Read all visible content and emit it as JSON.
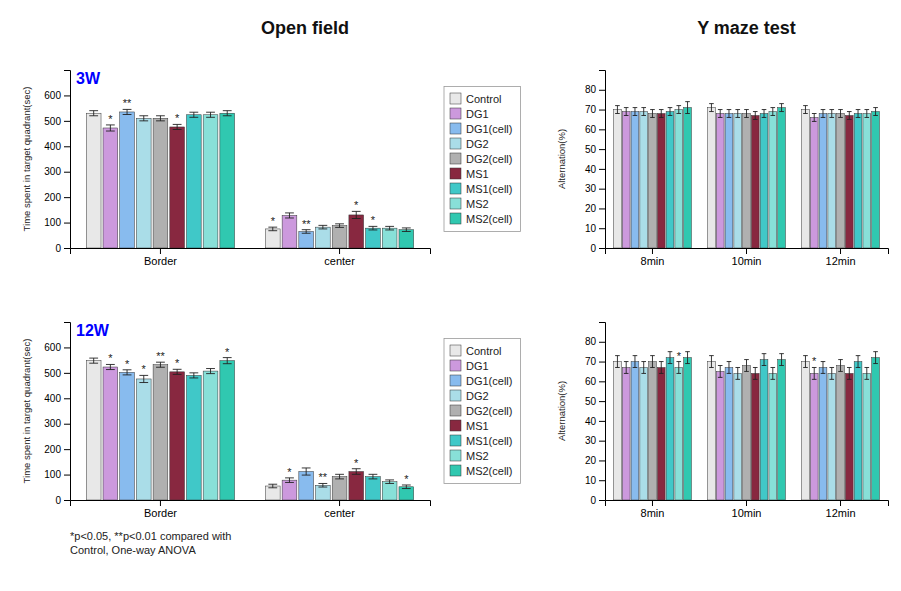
{
  "chart_data": [
    {
      "type": "bar",
      "title": "Open field",
      "subtitle": "3W",
      "categories": [
        "Border",
        "center"
      ],
      "ylabel": "Time spent in target quadrant(sec)",
      "ylim": [
        0,
        700
      ],
      "yticks": [
        0,
        100,
        200,
        300,
        400,
        500,
        600
      ],
      "legend": "right",
      "series": [
        {
          "name": "Control",
          "color": "#e8e8e8",
          "values": [
            530,
            75
          ],
          "errors": [
            10,
            7
          ],
          "annotations": [
            null,
            "*"
          ]
        },
        {
          "name": "DG1",
          "color": "#cc99dd",
          "values": [
            472,
            128
          ],
          "errors": [
            12,
            10
          ],
          "annotations": [
            "*",
            null
          ]
        },
        {
          "name": "DG1(cell)",
          "color": "#88bbee",
          "values": [
            535,
            65
          ],
          "errors": [
            10,
            7
          ],
          "annotations": [
            "**",
            "**"
          ]
        },
        {
          "name": "DG2",
          "color": "#aadde8",
          "values": [
            510,
            82
          ],
          "errors": [
            10,
            7
          ]
        },
        {
          "name": "DG2(cell)",
          "color": "#b0b0b0",
          "values": [
            510,
            88
          ],
          "errors": [
            10,
            7
          ]
        },
        {
          "name": "MS1",
          "color": "#882840",
          "values": [
            476,
            130
          ],
          "errors": [
            10,
            14
          ],
          "annotations": [
            "*",
            "*"
          ]
        },
        {
          "name": "MS1(cell)",
          "color": "#40c8c8",
          "values": [
            524,
            78
          ],
          "errors": [
            10,
            7
          ],
          "annotations": [
            null,
            "*"
          ]
        },
        {
          "name": "MS2",
          "color": "#88e0d8",
          "values": [
            524,
            78
          ],
          "errors": [
            10,
            7
          ]
        },
        {
          "name": "MS2(cell)",
          "color": "#30c8b0",
          "values": [
            530,
            72
          ],
          "errors": [
            10,
            7
          ]
        }
      ]
    },
    {
      "type": "bar",
      "title": "Y maze test",
      "categories": [
        "8min",
        "10min",
        "12min"
      ],
      "ylabel": "Alternation(%)",
      "ylim": [
        0,
        90
      ],
      "yticks": [
        0,
        10,
        20,
        30,
        40,
        50,
        60,
        70,
        80
      ],
      "series": [
        {
          "color": "#e8e8e8",
          "values": [
            70,
            71,
            70
          ],
          "errors": [
            2,
            2,
            2
          ]
        },
        {
          "color": "#cc99dd",
          "values": [
            69,
            68,
            66
          ],
          "errors": [
            2,
            2,
            2
          ]
        },
        {
          "color": "#88bbee",
          "values": [
            69,
            68,
            68
          ],
          "errors": [
            2,
            2,
            2
          ]
        },
        {
          "color": "#aadde8",
          "values": [
            69,
            68,
            68
          ],
          "errors": [
            2,
            2,
            2
          ]
        },
        {
          "color": "#b0b0b0",
          "values": [
            68,
            68,
            68
          ],
          "errors": [
            2,
            2,
            2
          ]
        },
        {
          "color": "#882840",
          "values": [
            68,
            67,
            67
          ],
          "errors": [
            2,
            2,
            2
          ]
        },
        {
          "color": "#40c8c8",
          "values": [
            69,
            68,
            68
          ],
          "errors": [
            2,
            2,
            2
          ]
        },
        {
          "color": "#88e0d8",
          "values": [
            70,
            69,
            68
          ],
          "errors": [
            2,
            2,
            2
          ]
        },
        {
          "color": "#30c8b0",
          "values": [
            71,
            71,
            69
          ],
          "errors": [
            3,
            2,
            2
          ]
        }
      ]
    },
    {
      "type": "bar",
      "subtitle": "12W",
      "categories": [
        "Border",
        "center"
      ],
      "ylabel": "Time spent in target quadrant(sec)",
      "ylim": [
        0,
        700
      ],
      "yticks": [
        0,
        100,
        200,
        300,
        400,
        500,
        600
      ],
      "legend": "right",
      "series": [
        {
          "name": "Control",
          "color": "#e8e8e8",
          "values": [
            548,
            55
          ],
          "errors": [
            10,
            7
          ]
        },
        {
          "name": "DG1",
          "color": "#cc99dd",
          "values": [
            523,
            78
          ],
          "errors": [
            10,
            9
          ],
          "annotations": [
            "*",
            "*"
          ]
        },
        {
          "name": "DG1(cell)",
          "color": "#88bbee",
          "values": [
            502,
            112
          ],
          "errors": [
            10,
            14
          ],
          "annotations": [
            "*",
            null
          ]
        },
        {
          "name": "DG2",
          "color": "#aadde8",
          "values": [
            476,
            58
          ],
          "errors": [
            14,
            7
          ],
          "annotations": [
            "*",
            "**"
          ]
        },
        {
          "name": "DG2(cell)",
          "color": "#b0b0b0",
          "values": [
            532,
            92
          ],
          "errors": [
            10,
            9
          ],
          "annotations": [
            "**",
            null
          ]
        },
        {
          "name": "MS1",
          "color": "#882840",
          "values": [
            504,
            112
          ],
          "errors": [
            10,
            11
          ],
          "annotations": [
            "*",
            "*"
          ]
        },
        {
          "name": "MS1(cell)",
          "color": "#40c8c8",
          "values": [
            490,
            92
          ],
          "errors": [
            10,
            9
          ]
        },
        {
          "name": "MS2",
          "color": "#88e0d8",
          "values": [
            507,
            72
          ],
          "errors": [
            10,
            7
          ]
        },
        {
          "name": "MS2(cell)",
          "color": "#30c8b0",
          "values": [
            548,
            52
          ],
          "errors": [
            12,
            7
          ],
          "annotations": [
            "*",
            "*"
          ]
        }
      ]
    },
    {
      "type": "bar",
      "categories": [
        "8min",
        "10min",
        "12min"
      ],
      "ylabel": "Alternation(%)",
      "ylim": [
        0,
        90
      ],
      "yticks": [
        0,
        10,
        20,
        30,
        40,
        50,
        60,
        70,
        80
      ],
      "series": [
        {
          "color": "#e8e8e8",
          "values": [
            70,
            70,
            70
          ],
          "errors": [
            3,
            3,
            3
          ]
        },
        {
          "color": "#cc99dd",
          "values": [
            67,
            65,
            64
          ],
          "errors": [
            3,
            3,
            3
          ],
          "annotations": [
            null,
            null,
            "*"
          ]
        },
        {
          "color": "#88bbee",
          "values": [
            70,
            67,
            67
          ],
          "errors": [
            3,
            3,
            3
          ]
        },
        {
          "color": "#aadde8",
          "values": [
            67,
            64,
            64
          ],
          "errors": [
            3,
            3,
            3
          ]
        },
        {
          "color": "#b0b0b0",
          "values": [
            70,
            68,
            68
          ],
          "errors": [
            3,
            3,
            3
          ]
        },
        {
          "color": "#882840",
          "values": [
            67,
            64,
            64
          ],
          "errors": [
            3,
            3,
            3
          ]
        },
        {
          "color": "#40c8c8",
          "values": [
            72,
            71,
            70
          ],
          "errors": [
            3,
            3,
            3
          ]
        },
        {
          "color": "#88e0d8",
          "values": [
            67,
            64,
            64
          ],
          "errors": [
            3,
            3,
            3
          ],
          "annotations": [
            "*",
            null,
            null
          ]
        },
        {
          "color": "#30c8b0",
          "values": [
            72,
            71,
            72
          ],
          "errors": [
            3,
            3,
            3
          ]
        }
      ]
    }
  ],
  "footer": "*p<0.05, **p<0.01 compared with\nControl, One-way ANOVA"
}
